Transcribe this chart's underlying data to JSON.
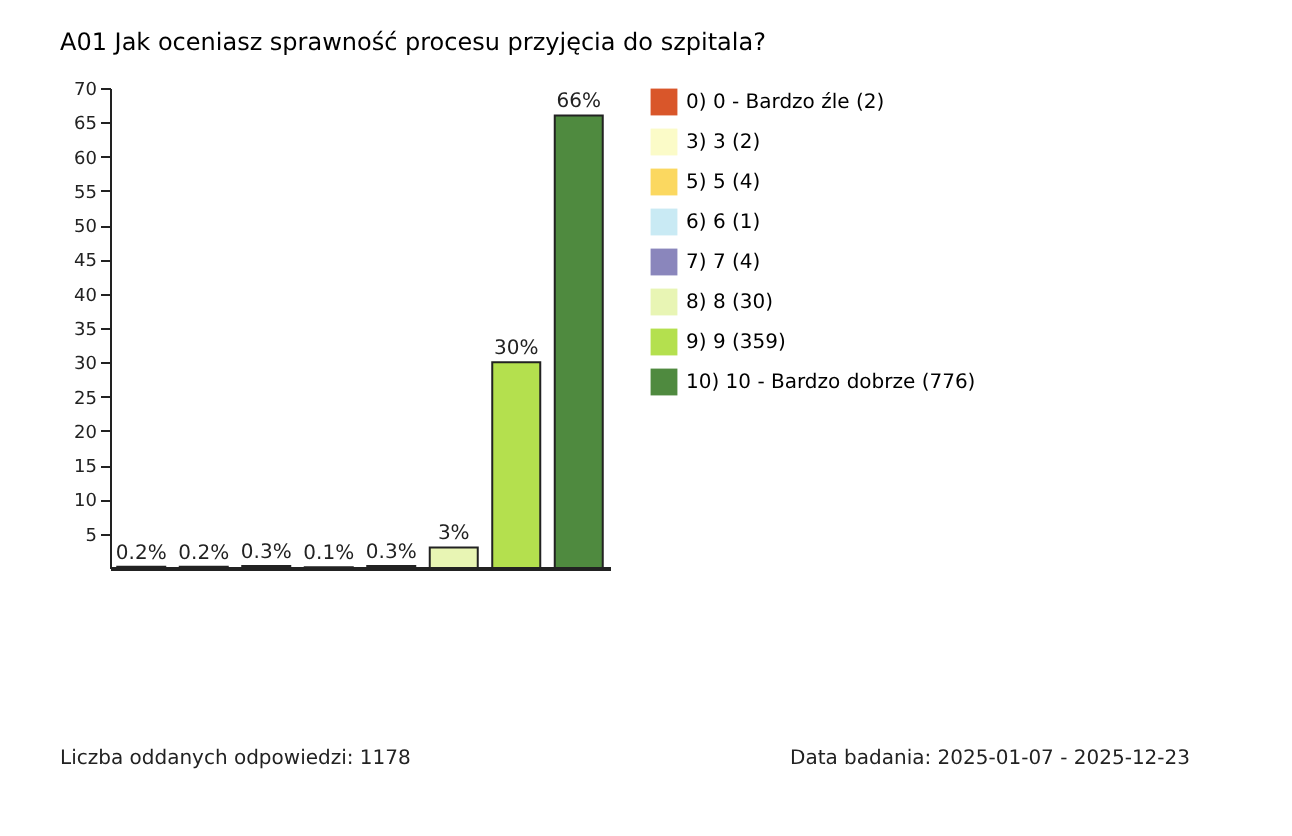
{
  "chart_data": {
    "type": "bar",
    "title": "A01 Jak oceniasz sprawność procesu przyjęcia do szpitala?",
    "categories": [
      null,
      null,
      null,
      null,
      null,
      null,
      null,
      null
    ],
    "series": [
      {
        "name": "0) 0 - Bardzo źle (2)",
        "color": "#d9562a",
        "values": [
          0.2,
          null,
          null,
          null,
          null,
          null,
          null,
          null
        ],
        "value_labels": [
          "0.2%",
          null,
          null,
          null,
          null,
          null,
          null,
          null
        ]
      },
      {
        "name": "3) 3 (2)",
        "color": "#fbfbc8",
        "values": [
          null,
          0.2,
          null,
          null,
          null,
          null,
          null,
          null
        ],
        "value_labels": [
          null,
          "0.2%",
          null,
          null,
          null,
          null,
          null,
          null
        ]
      },
      {
        "name": "5) 5 (4)",
        "color": "#fbd860",
        "values": [
          null,
          null,
          0.3,
          null,
          null,
          null,
          null,
          null
        ],
        "value_labels": [
          null,
          null,
          "0.3%",
          null,
          null,
          null,
          null,
          null
        ]
      },
      {
        "name": "6) 6 (1)",
        "color": "#c9eaf4",
        "values": [
          null,
          null,
          null,
          0.1,
          null,
          null,
          null,
          null
        ],
        "value_labels": [
          null,
          null,
          null,
          "0.1%",
          null,
          null,
          null,
          null
        ]
      },
      {
        "name": "7) 7 (4)",
        "color": "#8a86bc",
        "values": [
          null,
          null,
          null,
          null,
          0.3,
          null,
          null,
          null
        ],
        "value_labels": [
          null,
          null,
          null,
          null,
          "0.3%",
          null,
          null,
          null
        ]
      },
      {
        "name": "8) 8 (30)",
        "color": "#e8f5b4",
        "values": [
          null,
          null,
          null,
          null,
          null,
          3,
          null,
          null
        ],
        "value_labels": [
          null,
          null,
          null,
          null,
          null,
          "3%",
          null,
          null
        ]
      },
      {
        "name": "9) 9 (359)",
        "color": "#b4e04e",
        "values": [
          null,
          null,
          null,
          null,
          null,
          null,
          30,
          null
        ],
        "value_labels": [
          null,
          null,
          null,
          null,
          null,
          null,
          "30%",
          null
        ]
      },
      {
        "name": "10) 10 - Bardzo dobrze (776)",
        "color": "#4f8a3f",
        "values": [
          null,
          null,
          null,
          null,
          null,
          null,
          null,
          66
        ],
        "value_labels": [
          null,
          null,
          null,
          null,
          null,
          null,
          null,
          "66%"
        ]
      }
    ],
    "ylim": [
      0,
      70
    ],
    "yticks": [
      5,
      10,
      15,
      20,
      25,
      30,
      35,
      40,
      45,
      50,
      55,
      60,
      65,
      70
    ],
    "tick_labels": "y",
    "grid": false,
    "legend": "right",
    "annotations": [
      "Liczba oddanych odpowiedzi: 1178",
      "Data badania: 2025-01-07 - 2025-12-23"
    ]
  }
}
